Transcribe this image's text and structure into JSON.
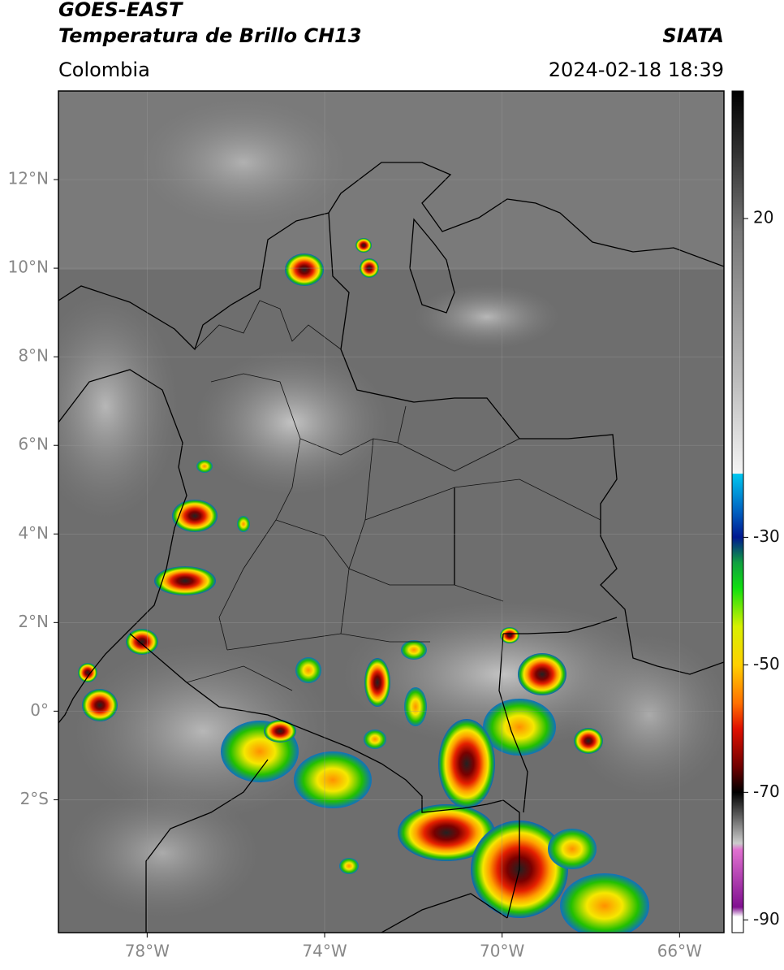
{
  "header": {
    "title": "GOES-EAST",
    "subtitle": "Temperatura de Brillo CH13",
    "source": "SIATA",
    "region": "Colombia",
    "datetime": "2024-02-18 18:39"
  },
  "map": {
    "xlim": [
      -80,
      -65
    ],
    "ylim": [
      -5,
      14
    ],
    "xticks": [
      {
        "value": -78,
        "label": "78°W"
      },
      {
        "value": -74,
        "label": "74°W"
      },
      {
        "value": -70,
        "label": "70°W"
      },
      {
        "value": -66,
        "label": "66°W"
      }
    ],
    "yticks": [
      {
        "value": 12,
        "label": "12°N"
      },
      {
        "value": 10,
        "label": "10°N"
      },
      {
        "value": 8,
        "label": "8°N"
      },
      {
        "value": 6,
        "label": "6°N"
      },
      {
        "value": 4,
        "label": "4°N"
      },
      {
        "value": 2,
        "label": "2°N"
      },
      {
        "value": 0,
        "label": "0°"
      },
      {
        "value": -2,
        "label": "2°S"
      }
    ]
  },
  "colorbar": {
    "lim": [
      -92,
      40
    ],
    "ticks": [
      20,
      -30,
      -50,
      -70,
      -90
    ]
  }
}
